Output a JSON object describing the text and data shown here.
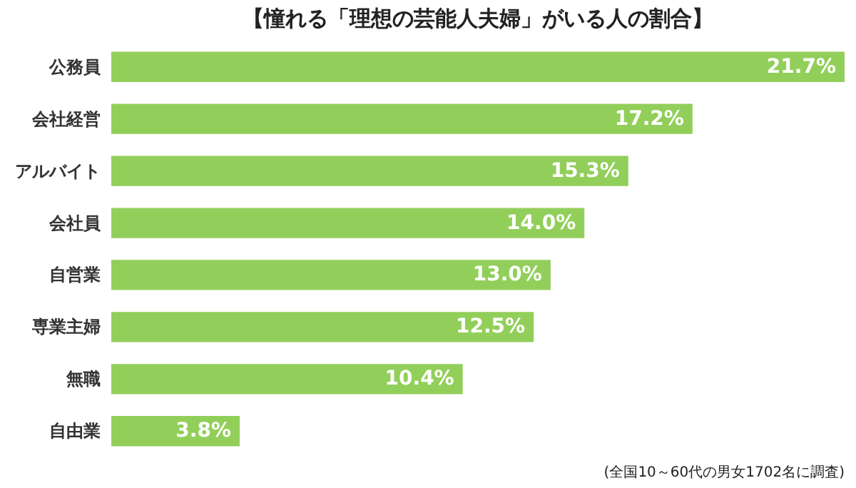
{
  "chart_data": {
    "type": "bar",
    "orientation": "horizontal",
    "title": "【憧れる「理想の芸能人夫婦」がいる人の割合】",
    "categories": [
      "公務員",
      "会社経営",
      "アルバイト",
      "会社員",
      "自営業",
      "専業主婦",
      "無職",
      "自由業"
    ],
    "values": [
      21.7,
      17.2,
      15.3,
      14.0,
      13.0,
      12.5,
      10.4,
      3.8
    ],
    "value_labels": [
      "21.7%",
      "17.2%",
      "15.3%",
      "14.0%",
      "13.0%",
      "12.5%",
      "10.4%",
      "3.8%"
    ],
    "color": "#92cf5a",
    "annotations": [
      "(全国10～60代の男女1702名に調査)"
    ]
  }
}
